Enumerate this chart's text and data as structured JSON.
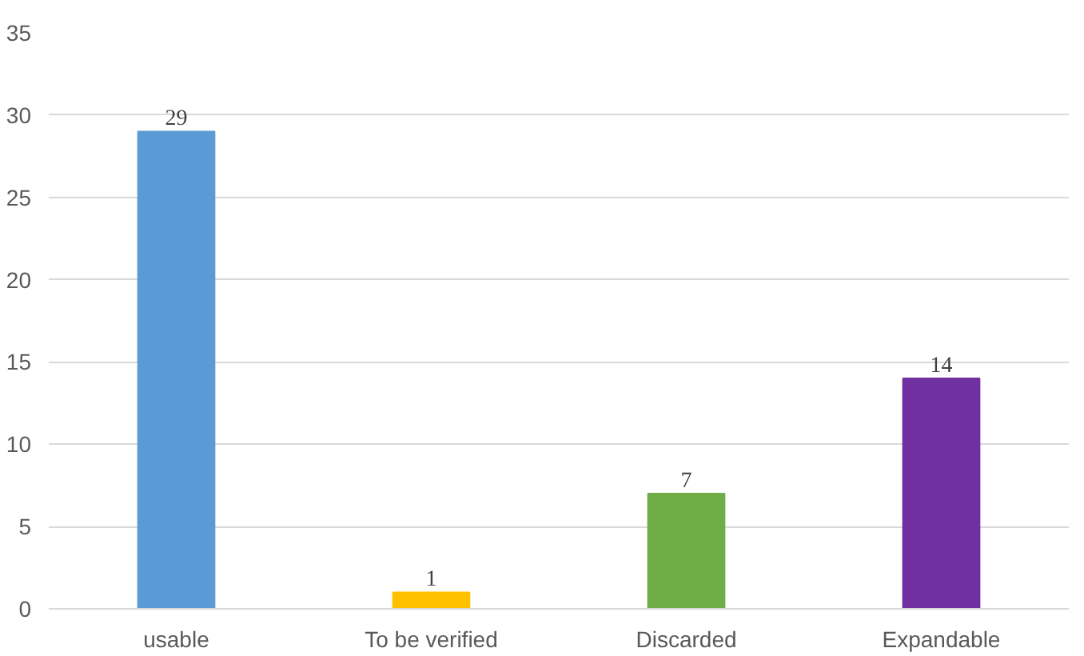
{
  "chart_data": {
    "type": "bar",
    "categories": [
      "usable",
      "To be verified",
      "Discarded",
      "Expandable"
    ],
    "values": [
      29,
      1,
      7,
      14
    ],
    "colors": [
      "#5b9bd5",
      "#ffc000",
      "#70ad47",
      "#7030a0"
    ],
    "ylim": [
      0,
      35
    ],
    "yticks": [
      0,
      5,
      10,
      15,
      20,
      25,
      30,
      35
    ],
    "grid": "y",
    "data_labels": true
  }
}
